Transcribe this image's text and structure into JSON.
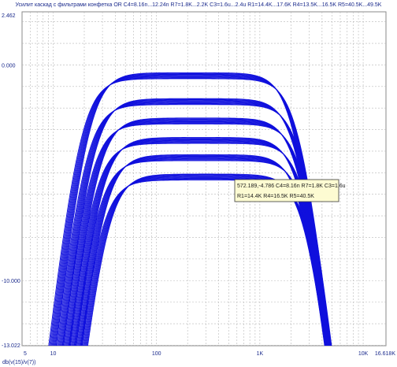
{
  "chart_data": {
    "type": "line",
    "title": "Усилит каскад с фильтрами конфетка OR C4=8.16n...12.24n R7=1.8K...2.2K C3=1.6u...2.4u R1=14.4K...17.6K R4=13.5K...16.5K R5=40.5K...49.5K",
    "xlabel": "db(v(15)/v(7))",
    "x_scale": "log",
    "xlim": [
      5,
      16618
    ],
    "ylim": [
      -13.022,
      2.462
    ],
    "y_ticks": [
      "2.462",
      "0.000",
      "-10.000",
      "-13.022"
    ],
    "x_ticks": [
      "5",
      "10",
      "100",
      "1K",
      "10K",
      "16.618K"
    ],
    "grid": true,
    "series_color": "#1010dd",
    "bands": [
      {
        "plateau": -0.5,
        "f_low": 20,
        "f_high": 2300,
        "count": 10
      },
      {
        "plateau": -1.7,
        "f_low": 22,
        "f_high": 2500,
        "count": 10
      },
      {
        "plateau": -2.6,
        "f_low": 24,
        "f_high": 2600,
        "count": 10
      },
      {
        "plateau": -3.5,
        "f_low": 26,
        "f_high": 2700,
        "count": 10
      },
      {
        "plateau": -4.3,
        "f_low": 28,
        "f_high": 2800,
        "count": 10
      },
      {
        "plateau": -5.2,
        "f_low": 30,
        "f_high": 3000,
        "count": 10
      }
    ],
    "cursor": {
      "x": 572.189,
      "y": -4.786,
      "line1": "572.189,-4.786 C4=8.16n R7=1.8K C3=1.6u",
      "line2": "R1=14.4K R4=16.5K R5=40.5K"
    }
  }
}
